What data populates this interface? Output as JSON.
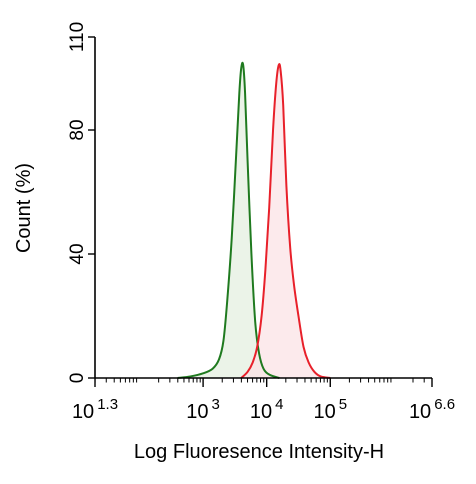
{
  "chart_data": {
    "type": "area",
    "title": "",
    "xlabel": "Log Fluoresence Intensity-H",
    "ylabel": "Count  (%)",
    "xscale": "log",
    "xlim_log10": [
      1.3,
      6.6
    ],
    "ylim": [
      0,
      110
    ],
    "grid": false,
    "legend": "none",
    "y_ticks": [
      0,
      40,
      80,
      110
    ],
    "y_tick_labels": [
      "0",
      "40",
      "80",
      "110"
    ],
    "x_ticks": [
      {
        "log10": 1.3,
        "base": "10",
        "exp": "1.3"
      },
      {
        "log10": 3,
        "base": "10",
        "exp": "3"
      },
      {
        "log10": 4,
        "base": "10",
        "exp": "4"
      },
      {
        "log10": 5,
        "base": "10",
        "exp": "5"
      },
      {
        "log10": 6.6,
        "base": "10",
        "exp": "6.6"
      }
    ],
    "series": [
      {
        "color": "#1f7a1f",
        "fill": "#e4efe0",
        "points": [
          [
            2.6,
            0
          ],
          [
            2.8,
            0.5
          ],
          [
            3.0,
            1.5
          ],
          [
            3.15,
            3
          ],
          [
            3.25,
            6
          ],
          [
            3.32,
            12
          ],
          [
            3.38,
            25
          ],
          [
            3.45,
            45
          ],
          [
            3.52,
            72
          ],
          [
            3.57,
            92
          ],
          [
            3.6,
            100
          ],
          [
            3.63,
            101
          ],
          [
            3.66,
            92
          ],
          [
            3.7,
            70
          ],
          [
            3.76,
            40
          ],
          [
            3.82,
            18
          ],
          [
            3.88,
            8
          ],
          [
            3.95,
            3
          ],
          [
            4.05,
            1
          ],
          [
            4.2,
            0
          ]
        ]
      },
      {
        "color": "#e8202a",
        "fill": "#fbe3e5",
        "points": [
          [
            3.6,
            0
          ],
          [
            3.7,
            2
          ],
          [
            3.78,
            5
          ],
          [
            3.85,
            10
          ],
          [
            3.92,
            20
          ],
          [
            3.98,
            35
          ],
          [
            4.04,
            55
          ],
          [
            4.1,
            80
          ],
          [
            4.15,
            95
          ],
          [
            4.19,
            101
          ],
          [
            4.22,
            99
          ],
          [
            4.26,
            88
          ],
          [
            4.31,
            62
          ],
          [
            4.37,
            42
          ],
          [
            4.43,
            30
          ],
          [
            4.5,
            20
          ],
          [
            4.58,
            10
          ],
          [
            4.66,
            5
          ],
          [
            4.75,
            2
          ],
          [
            4.85,
            0.5
          ],
          [
            5.0,
            0
          ]
        ]
      }
    ]
  }
}
